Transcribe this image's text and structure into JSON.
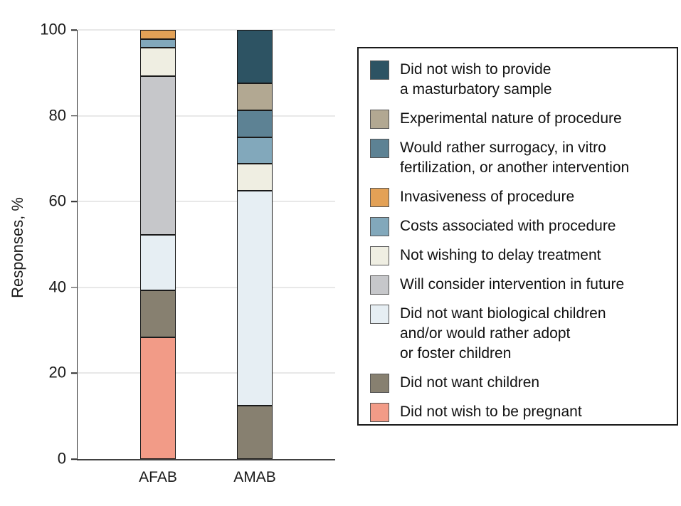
{
  "chart_data": {
    "type": "bar",
    "stacked": true,
    "title": "",
    "xlabel": "",
    "ylabel": "Responses, %",
    "ylim": [
      0,
      100
    ],
    "yticks": [
      0,
      20,
      40,
      60,
      80,
      100
    ],
    "grid": true,
    "legend_position": "right",
    "categories": [
      "AFAB",
      "AMAB"
    ],
    "series": [
      {
        "name": "Did not wish to provide\na masturbatory sample",
        "color": "#2D5363",
        "values": [
          0,
          12.5
        ]
      },
      {
        "name": "Experimental nature of procedure",
        "color": "#B2A892",
        "values": [
          0,
          6.25
        ]
      },
      {
        "name": "Would rather surrogacy, in vitro\nfertilization, or another intervention",
        "color": "#5D8294",
        "values": [
          0,
          6.25
        ]
      },
      {
        "name": "Invasiveness of procedure",
        "color": "#E3A156",
        "values": [
          2.1,
          0
        ]
      },
      {
        "name": "Costs associated with procedure",
        "color": "#82A8BB",
        "values": [
          2.1,
          6.25
        ]
      },
      {
        "name": "Not wishing to delay treatment",
        "color": "#EFEEE2",
        "values": [
          6.5,
          6.25
        ]
      },
      {
        "name": "Will consider intervention in future",
        "color": "#C6C7CA",
        "values": [
          37,
          0
        ]
      },
      {
        "name": "Did not want biological children\nand/or would rather adopt\nor foster children",
        "color": "#E6EEF3",
        "values": [
          13,
          50
        ]
      },
      {
        "name": "Did not want children",
        "color": "#878070",
        "values": [
          11,
          12.5
        ]
      },
      {
        "name": "Did not wish to be pregnant",
        "color": "#F29B87",
        "values": [
          28.3,
          0
        ]
      }
    ]
  }
}
